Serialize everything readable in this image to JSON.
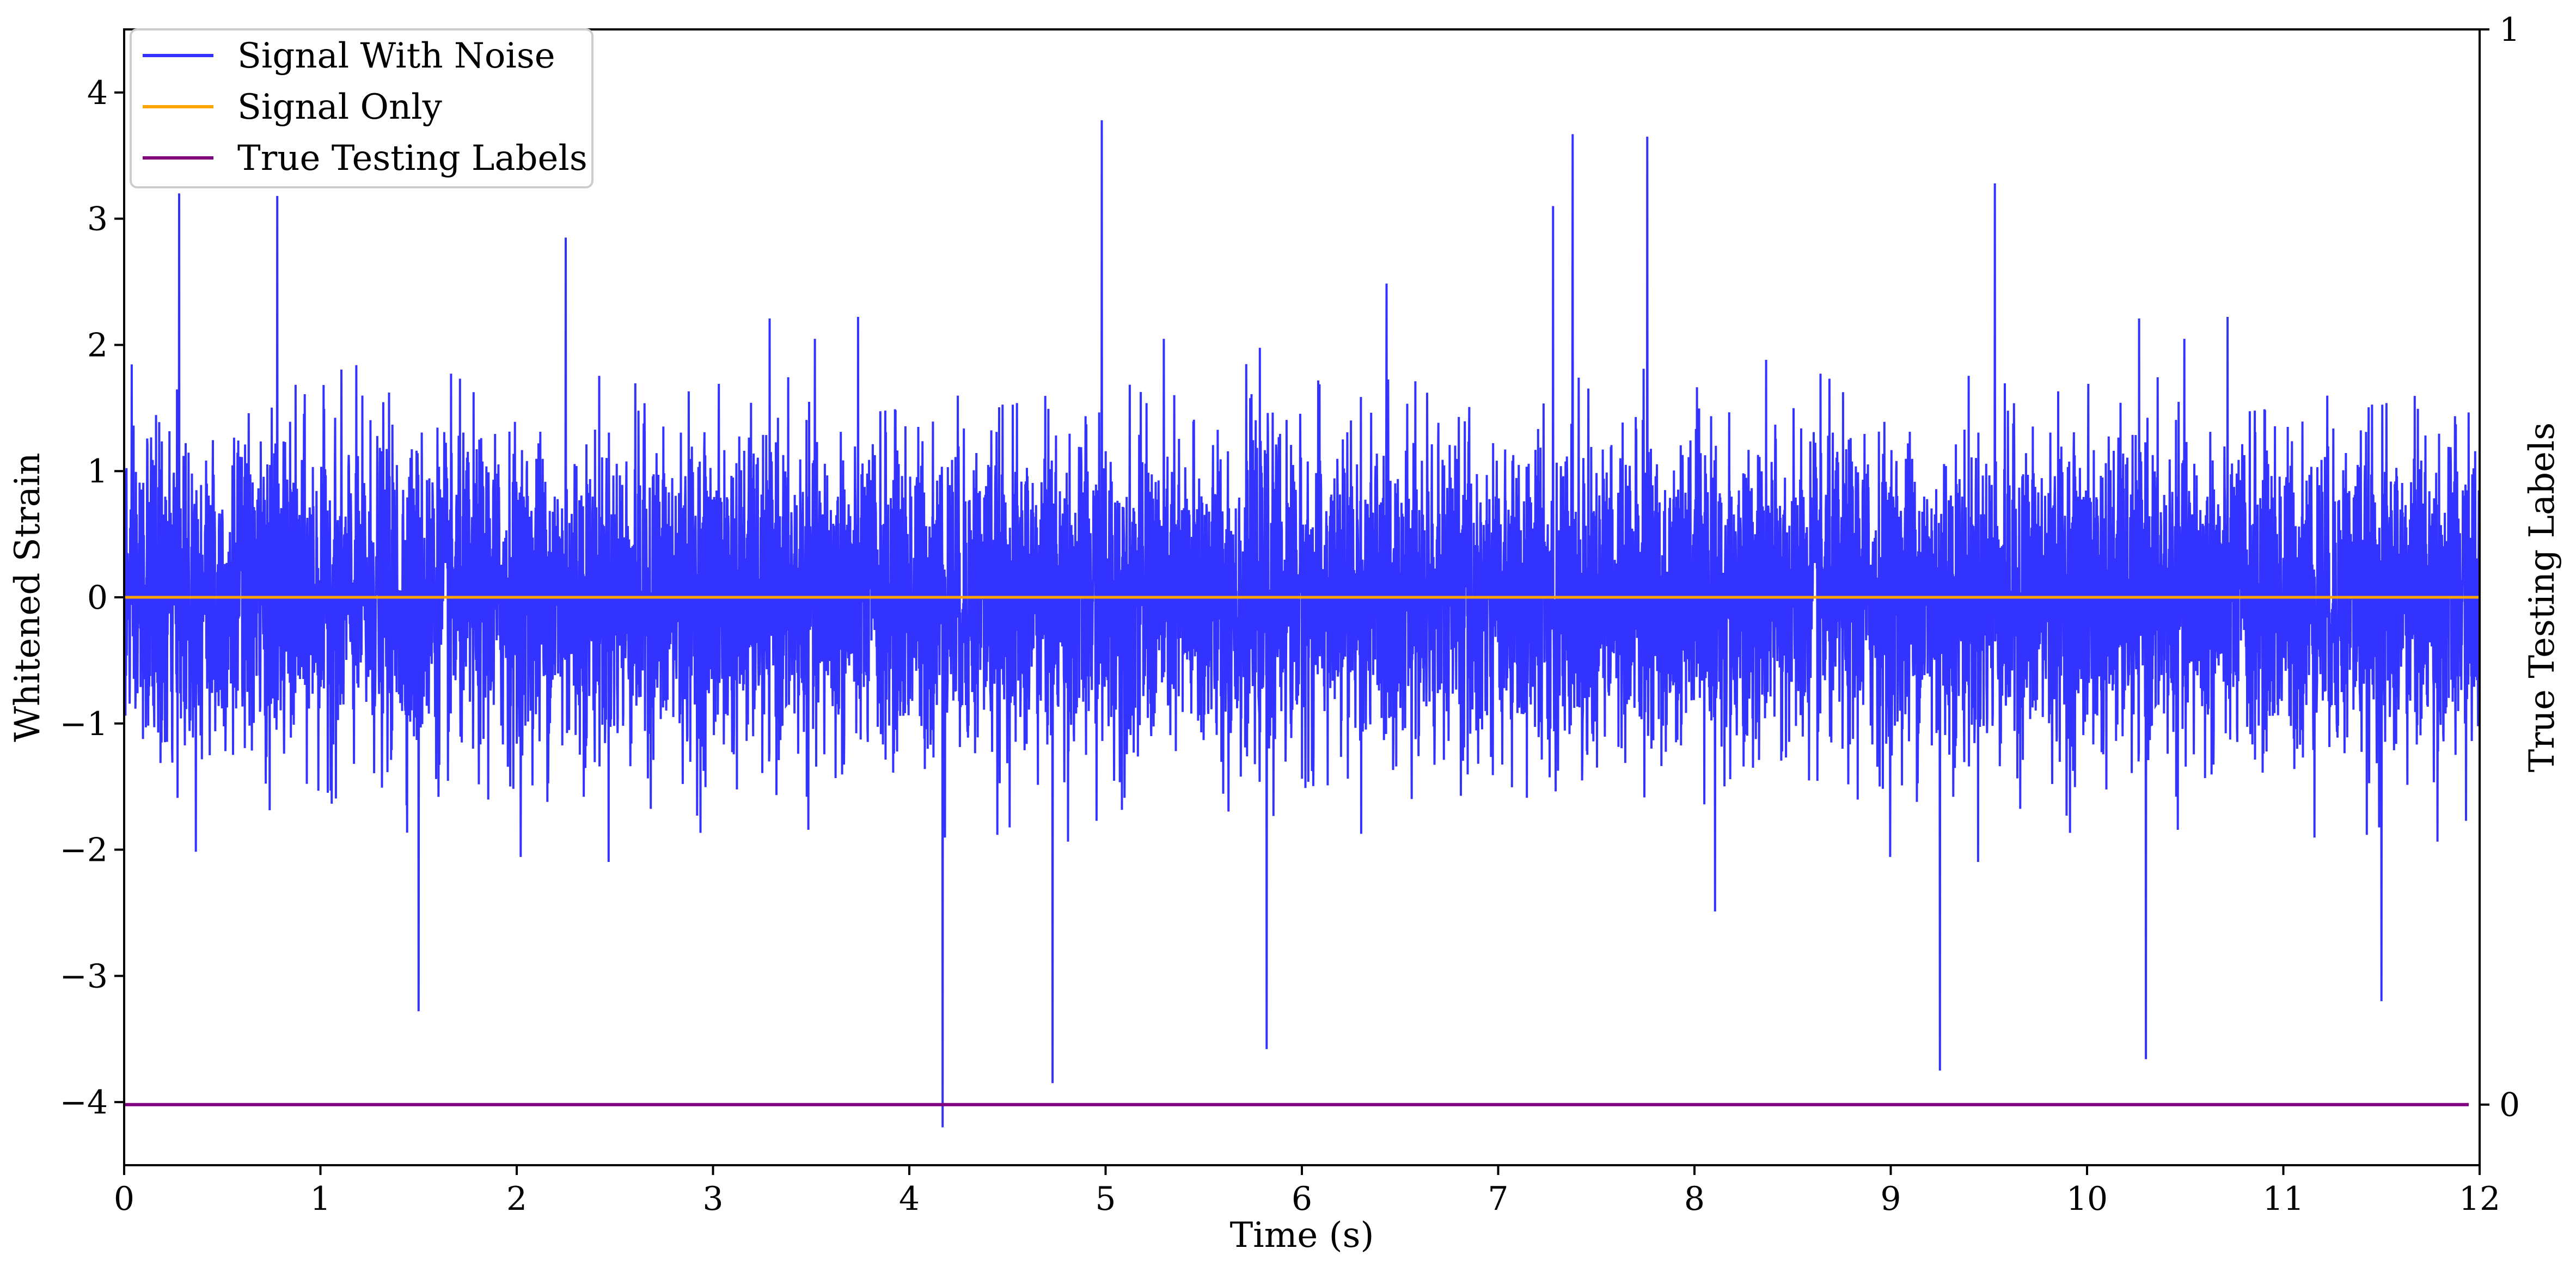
{
  "chart_data": {
    "type": "line",
    "title": "",
    "xlabel": "Time (s)",
    "ylabel": "Whitened Strain",
    "y2label": "True Testing Labels",
    "xlim": [
      0,
      12
    ],
    "ylim": [
      -4.5,
      4.5
    ],
    "y2ticks": [
      "0",
      "1"
    ],
    "x_ticks": [
      "0",
      "1",
      "2",
      "3",
      "4",
      "5",
      "6",
      "7",
      "8",
      "9",
      "10",
      "11",
      "12"
    ],
    "y_ticks": [
      "−4",
      "−3",
      "−2",
      "−1",
      "0",
      "1",
      "2",
      "3",
      "4"
    ],
    "legend_position": "top-left",
    "series": [
      {
        "name": "Signal With Noise",
        "color": "#3333ff",
        "description_values": "dense noise, mostly within ±1.5, extremes reach ~3.78 near t=5.0 and ~-4.2 near t=4.17",
        "peaks": [
          {
            "x": 0.28,
            "y": 3.2
          },
          {
            "x": 0.78,
            "y": 3.18
          },
          {
            "x": 1.5,
            "y": -3.28
          },
          {
            "x": 2.25,
            "y": 2.85
          },
          {
            "x": 4.17,
            "y": -4.2
          },
          {
            "x": 4.73,
            "y": -3.85
          },
          {
            "x": 4.98,
            "y": 3.78
          },
          {
            "x": 5.82,
            "y": -3.58
          },
          {
            "x": 7.28,
            "y": 3.1
          },
          {
            "x": 7.38,
            "y": 3.67
          },
          {
            "x": 7.76,
            "y": 3.65
          },
          {
            "x": 9.25,
            "y": -3.75
          },
          {
            "x": 9.53,
            "y": 3.28
          },
          {
            "x": 10.3,
            "y": -3.66
          },
          {
            "x": 11.5,
            "y": -3.2
          }
        ]
      },
      {
        "name": "Signal Only",
        "color": "#ffa500",
        "x": [
          0,
          12
        ],
        "y": [
          0,
          0
        ]
      },
      {
        "name": "True Testing Labels",
        "color": "#800080",
        "axis": "right",
        "x": [
          0,
          12
        ],
        "y": [
          0,
          0
        ]
      }
    ]
  }
}
